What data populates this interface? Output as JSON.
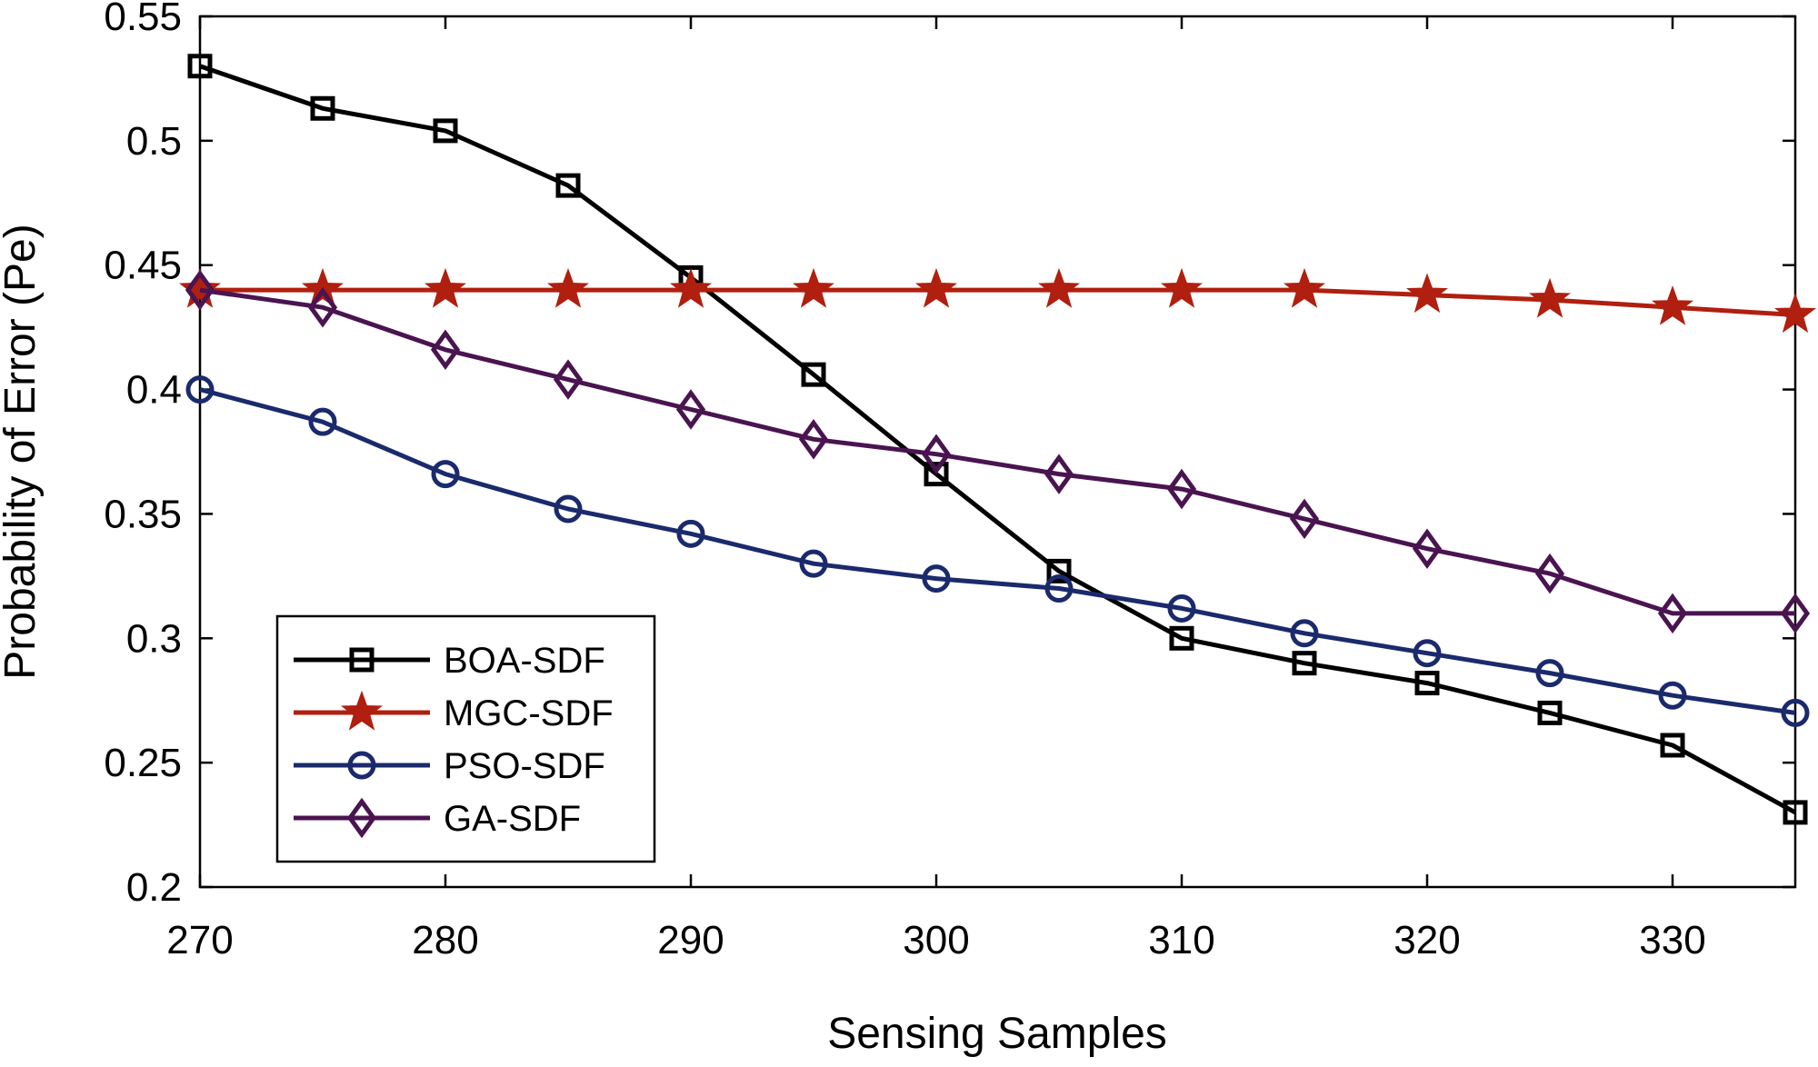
{
  "chart_data": {
    "type": "line",
    "title": "",
    "xlabel": "Sensing Samples",
    "ylabel": "Probability of Error (Pe)",
    "xlim": [
      270,
      335
    ],
    "ylim": [
      0.2,
      0.55
    ],
    "xticks": [
      270,
      280,
      290,
      300,
      310,
      320,
      330
    ],
    "xtick_labels": [
      "270",
      "280",
      "290",
      "300",
      "310",
      "320",
      "330"
    ],
    "yticks": [
      0.2,
      0.25,
      0.3,
      0.35,
      0.4,
      0.45,
      0.5,
      0.55
    ],
    "ytick_labels": [
      "0.2",
      "0.25",
      "0.3",
      "0.35",
      "0.4",
      "0.45",
      "0.5",
      "0.55"
    ],
    "grid": false,
    "legend_position": "bottom-left",
    "x": [
      270,
      275,
      280,
      285,
      290,
      295,
      300,
      305,
      310,
      315,
      320,
      325,
      330,
      335
    ],
    "series": [
      {
        "name": "BOA-SDF",
        "color": "#000000",
        "marker": "square",
        "values": [
          0.53,
          0.513,
          0.504,
          0.482,
          0.445,
          0.406,
          0.366,
          0.327,
          0.3,
          0.29,
          0.282,
          0.27,
          0.257,
          0.23
        ]
      },
      {
        "name": "MGC-SDF",
        "color": "#B01F0F",
        "marker": "star",
        "values": [
          0.44,
          0.44,
          0.44,
          0.44,
          0.44,
          0.44,
          0.44,
          0.44,
          0.44,
          0.44,
          0.438,
          0.436,
          0.433,
          0.43
        ]
      },
      {
        "name": "PSO-SDF",
        "color": "#1A2A6C",
        "marker": "circle",
        "values": [
          0.4,
          0.387,
          0.366,
          0.352,
          0.342,
          0.33,
          0.324,
          0.32,
          0.312,
          0.302,
          0.294,
          0.286,
          0.277,
          0.27
        ]
      },
      {
        "name": "GA-SDF",
        "color": "#4A1450",
        "marker": "diamond",
        "values": [
          0.44,
          0.433,
          0.416,
          0.404,
          0.392,
          0.38,
          0.374,
          0.366,
          0.36,
          0.348,
          0.336,
          0.326,
          0.31,
          0.31
        ]
      }
    ]
  }
}
